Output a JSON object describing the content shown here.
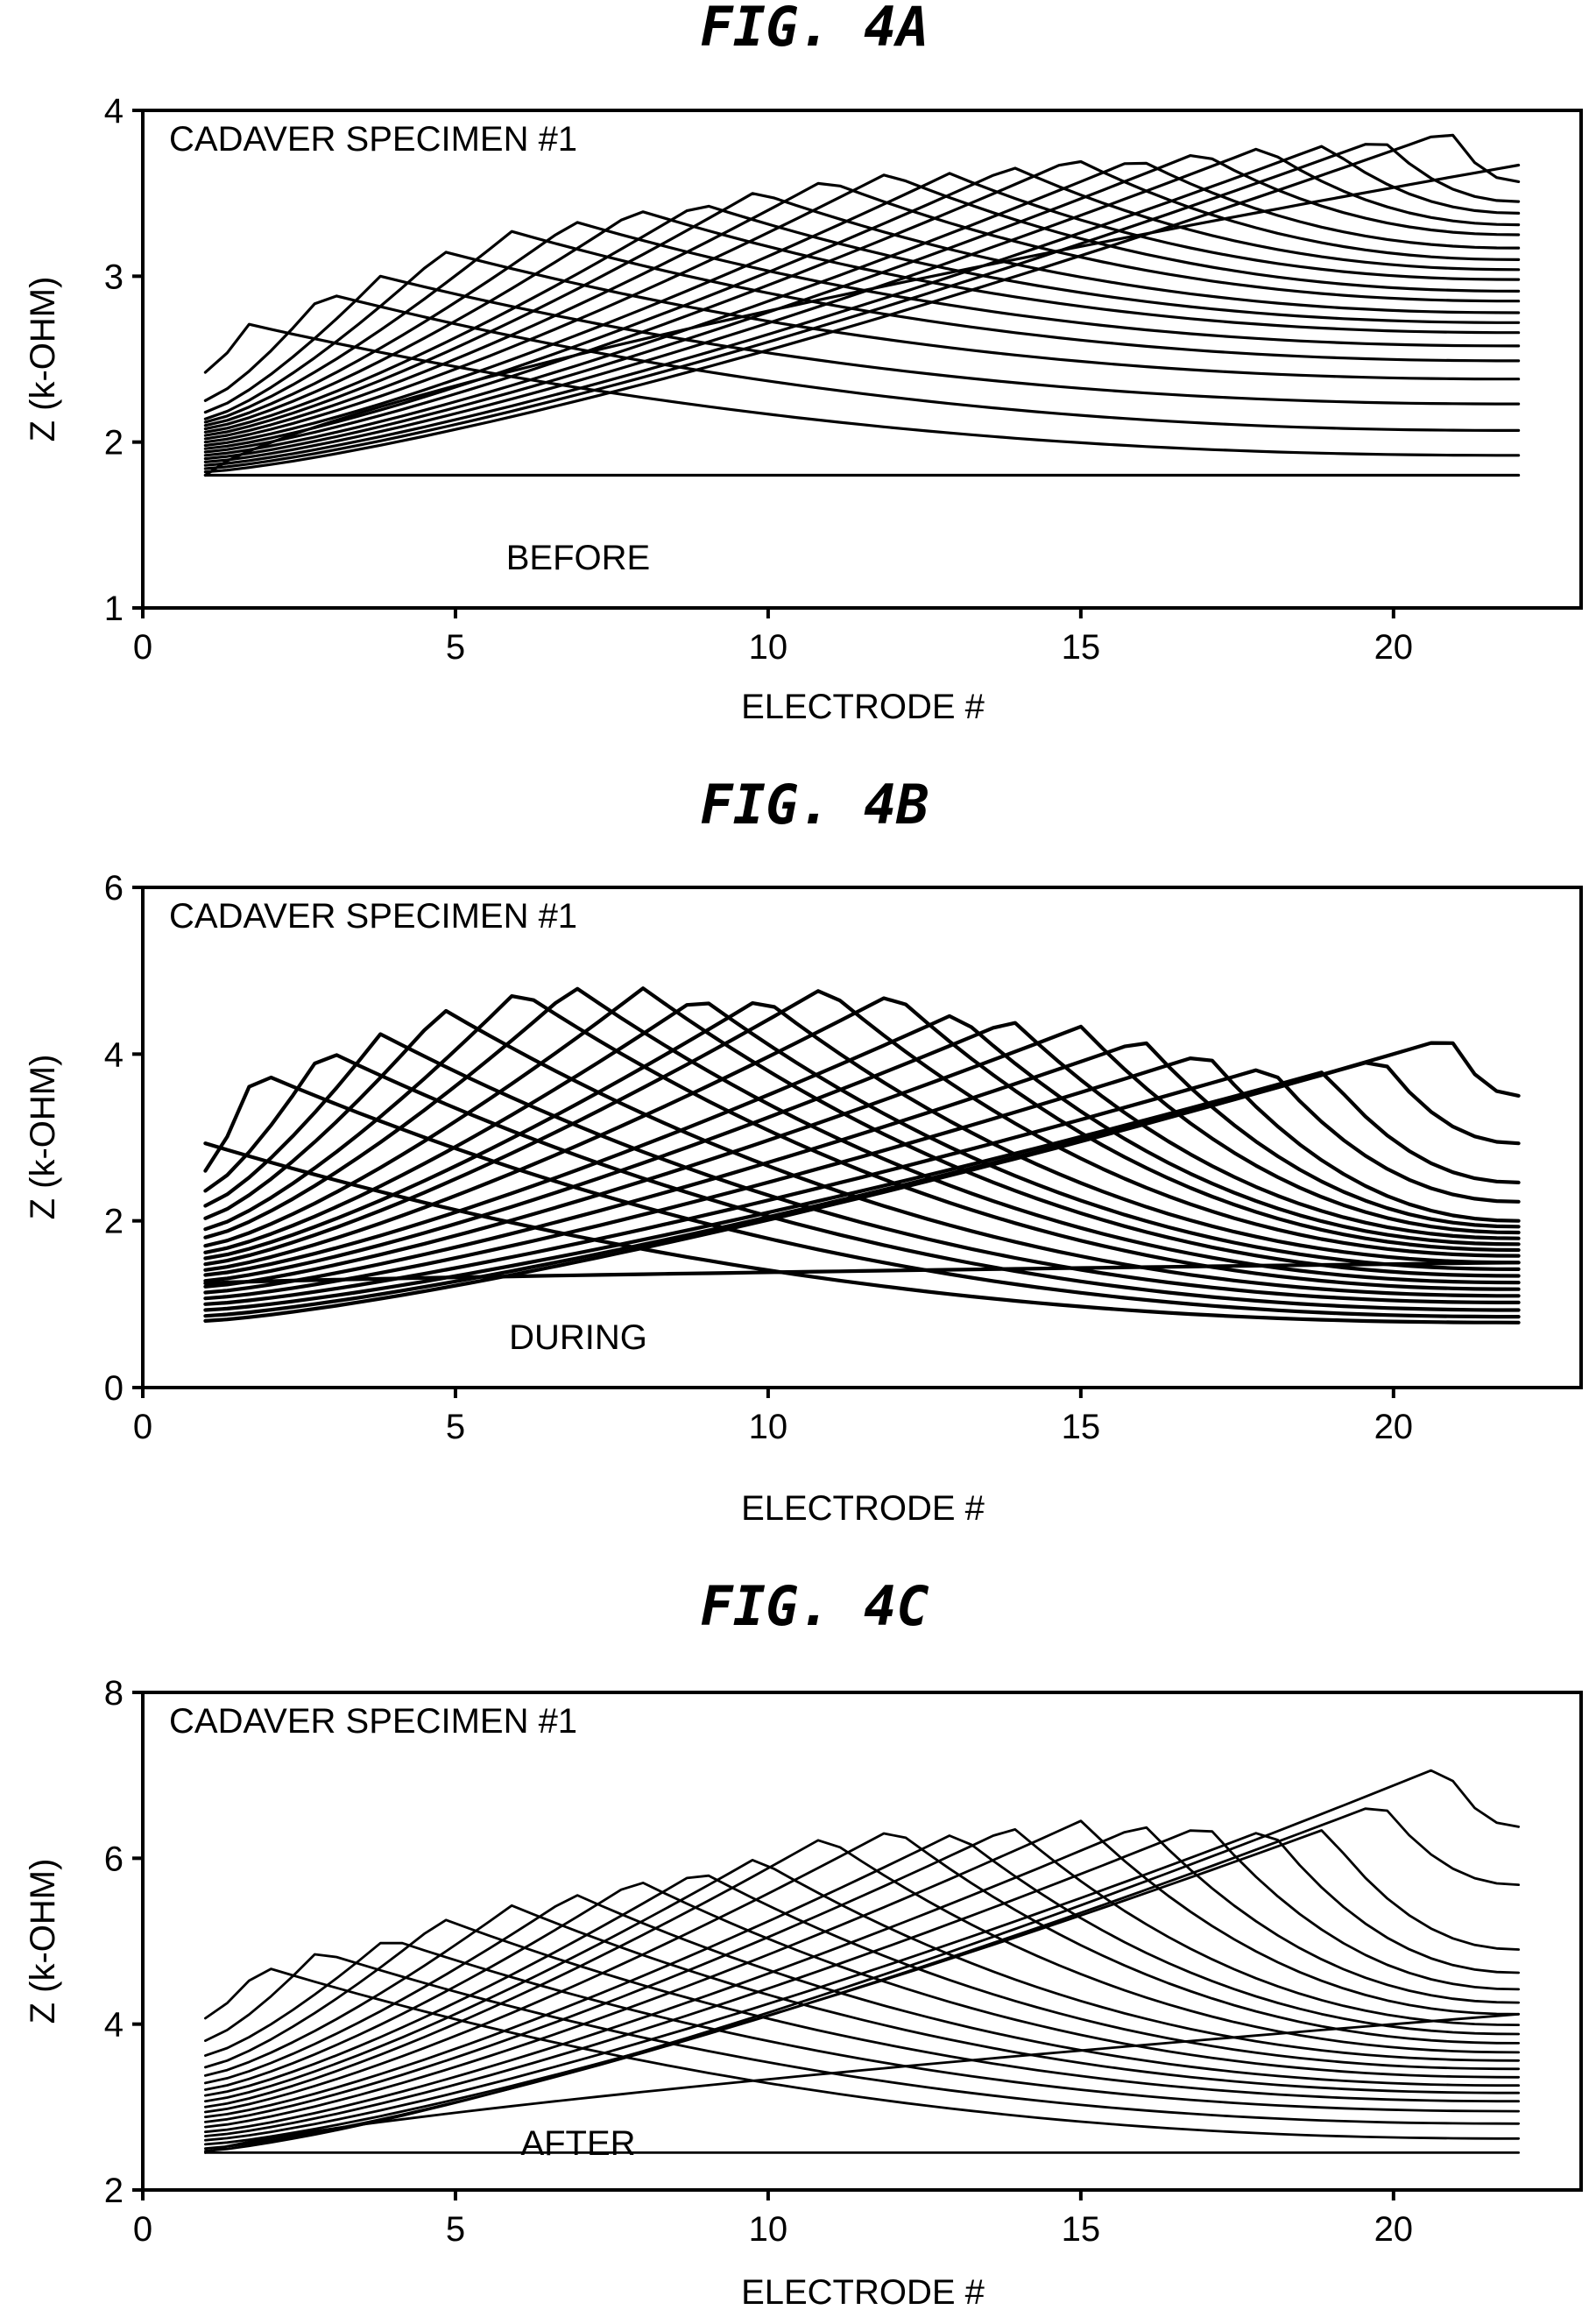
{
  "chart_data": [
    {
      "type": "line",
      "title": "FIG. 4A",
      "annotation": "CADAVER SPECIMEN #1",
      "condition_label": "BEFORE",
      "xlabel": "ELECTRODE #",
      "ylabel": "Z (k-OHM)",
      "xlim": [
        0,
        23
      ],
      "ylim": [
        1,
        4
      ],
      "xticks": [
        0,
        5,
        10,
        15,
        20
      ],
      "yticks": [
        1,
        2,
        3,
        4
      ],
      "grid": false,
      "x": [
        1,
        22
      ],
      "series": [
        {
          "peak_x": 1,
          "start": 1.8,
          "peak": 1.8,
          "end": 1.8,
          "shape": "peak_left"
        },
        {
          "peak_x": 1.7,
          "start": 2.42,
          "peak": 2.71,
          "end": 1.92,
          "shape": "peak_left"
        },
        {
          "peak_x": 2.9,
          "start": 2.25,
          "peak": 2.9,
          "end": 2.07,
          "shape": "peak_left"
        },
        {
          "peak_x": 3.8,
          "start": 2.18,
          "peak": 3.0,
          "end": 2.23,
          "shape": "peak_left"
        },
        {
          "peak_x": 4.8,
          "start": 2.14,
          "peak": 3.15,
          "end": 2.38,
          "shape": "peak_left"
        },
        {
          "peak_x": 5.9,
          "start": 2.12,
          "peak": 3.27,
          "end": 2.49,
          "shape": "peak_left"
        },
        {
          "peak_x": 6.9,
          "start": 2.1,
          "peak": 3.33,
          "end": 2.58,
          "shape": "peak_left"
        },
        {
          "peak_x": 7.9,
          "start": 2.08,
          "peak": 3.4,
          "end": 2.66,
          "shape": "peak_left"
        },
        {
          "peak_x": 8.9,
          "start": 2.06,
          "peak": 3.44,
          "end": 2.72,
          "shape": "peak_left"
        },
        {
          "peak_x": 9.8,
          "start": 2.04,
          "peak": 3.51,
          "end": 2.78,
          "shape": "peak_left"
        },
        {
          "peak_x": 10.9,
          "start": 2.02,
          "peak": 3.58,
          "end": 2.85,
          "shape": "peak_left"
        },
        {
          "peak_x": 11.9,
          "start": 2.0,
          "peak": 3.62,
          "end": 2.91,
          "shape": "peak_left"
        },
        {
          "peak_x": 12.9,
          "start": 1.98,
          "peak": 3.62,
          "end": 2.98,
          "shape": "peak_left"
        },
        {
          "peak_x": 13.9,
          "start": 1.96,
          "peak": 3.66,
          "end": 3.04,
          "shape": "peak_left"
        },
        {
          "peak_x": 14.9,
          "start": 1.94,
          "peak": 3.71,
          "end": 3.1,
          "shape": "peak_left"
        },
        {
          "peak_x": 15.9,
          "start": 1.92,
          "peak": 3.71,
          "end": 3.17,
          "shape": "peak_left"
        },
        {
          "peak_x": 16.9,
          "start": 1.9,
          "peak": 3.75,
          "end": 3.25,
          "shape": "peak_left"
        },
        {
          "peak_x": 17.9,
          "start": 1.88,
          "peak": 3.78,
          "end": 3.31,
          "shape": "peak_left"
        },
        {
          "peak_x": 18.9,
          "start": 1.86,
          "peak": 3.79,
          "end": 3.38,
          "shape": "peak_left"
        },
        {
          "peak_x": 19.8,
          "start": 1.84,
          "peak": 3.83,
          "end": 3.45,
          "shape": "peak_left"
        },
        {
          "peak_x": 20.9,
          "start": 1.82,
          "peak": 3.88,
          "end": 3.57,
          "shape": "peak_left"
        },
        {
          "peak_x": 22,
          "start": 1.8,
          "peak": 3.67,
          "end": 3.67,
          "shape": "rise_right"
        }
      ]
    },
    {
      "type": "line",
      "title": "FIG. 4B",
      "annotation": "CADAVER SPECIMEN #1",
      "condition_label": "DURING",
      "xlabel": "ELECTRODE #",
      "ylabel": "Z (k-OHM)",
      "xlim": [
        0,
        23
      ],
      "ylim": [
        0,
        6
      ],
      "xticks": [
        0,
        5,
        10,
        15,
        20
      ],
      "yticks": [
        0,
        2,
        4,
        6
      ],
      "grid": false,
      "x": [
        1,
        22
      ],
      "series": [
        {
          "peak_x": 1,
          "start": 2.93,
          "peak": 2.93,
          "end": 0.78,
          "shape": "peak_left"
        },
        {
          "peak_x": 1.8,
          "start": 2.6,
          "peak": 3.8,
          "end": 0.85,
          "shape": "peak_left"
        },
        {
          "peak_x": 2.9,
          "start": 2.36,
          "peak": 4.06,
          "end": 0.93,
          "shape": "peak_left"
        },
        {
          "peak_x": 3.8,
          "start": 2.18,
          "peak": 4.24,
          "end": 1.02,
          "shape": "peak_left"
        },
        {
          "peak_x": 4.8,
          "start": 2.03,
          "peak": 4.54,
          "end": 1.1,
          "shape": "peak_left"
        },
        {
          "peak_x": 6.0,
          "start": 1.9,
          "peak": 4.77,
          "end": 1.18,
          "shape": "peak_left"
        },
        {
          "peak_x": 6.9,
          "start": 1.8,
          "peak": 4.81,
          "end": 1.26,
          "shape": "peak_left"
        },
        {
          "peak_x": 8.0,
          "start": 1.7,
          "peak": 4.79,
          "end": 1.34,
          "shape": "peak_left"
        },
        {
          "peak_x": 8.9,
          "start": 1.62,
          "peak": 4.69,
          "end": 1.42,
          "shape": "peak_left"
        },
        {
          "peak_x": 9.9,
          "start": 1.55,
          "peak": 4.68,
          "end": 1.5,
          "shape": "peak_left"
        },
        {
          "peak_x": 10.9,
          "start": 1.48,
          "peak": 4.8,
          "end": 1.58,
          "shape": "peak_left"
        },
        {
          "peak_x": 12.0,
          "start": 1.41,
          "peak": 4.73,
          "end": 1.65,
          "shape": "peak_left"
        },
        {
          "peak_x": 13.0,
          "start": 1.35,
          "peak": 4.49,
          "end": 1.72,
          "shape": "peak_left"
        },
        {
          "peak_x": 13.9,
          "start": 1.28,
          "peak": 4.41,
          "end": 1.79,
          "shape": "peak_left"
        },
        {
          "peak_x": 15.0,
          "start": 1.21,
          "peak": 4.33,
          "end": 1.86,
          "shape": "peak_left"
        },
        {
          "peak_x": 16.0,
          "start": 1.14,
          "peak": 4.17,
          "end": 1.93,
          "shape": "peak_left"
        },
        {
          "peak_x": 17.0,
          "start": 1.07,
          "peak": 4.01,
          "end": 2.0,
          "shape": "peak_left"
        },
        {
          "peak_x": 18.0,
          "start": 1.0,
          "peak": 3.85,
          "end": 2.23,
          "shape": "peak_left"
        },
        {
          "peak_x": 18.9,
          "start": 0.93,
          "peak": 3.79,
          "end": 2.46,
          "shape": "peak_left"
        },
        {
          "peak_x": 19.8,
          "start": 0.86,
          "peak": 3.95,
          "end": 2.93,
          "shape": "peak_left"
        },
        {
          "peak_x": 20.9,
          "start": 0.8,
          "peak": 4.2,
          "end": 3.5,
          "shape": "peak_left"
        },
        {
          "peak_x": 22,
          "start": 1.25,
          "peak": 1.5,
          "end": 1.5,
          "shape": "rise_right"
        }
      ]
    },
    {
      "type": "line",
      "title": "FIG. 4C",
      "annotation": "CADAVER SPECIMEN #1",
      "condition_label": "AFTER",
      "xlabel": "ELECTRODE #",
      "ylabel": "Z (k-OHM)",
      "xlim": [
        0,
        23
      ],
      "ylim": [
        2,
        8
      ],
      "xticks": [
        0,
        5,
        10,
        15,
        20
      ],
      "yticks": [
        2,
        4,
        6,
        8
      ],
      "grid": false,
      "x": [
        1,
        22
      ],
      "series": [
        {
          "peak_x": 1,
          "start": 2.45,
          "peak": 2.45,
          "end": 2.45,
          "shape": "peak_left"
        },
        {
          "peak_x": 1.9,
          "start": 4.07,
          "peak": 4.7,
          "end": 2.62,
          "shape": "peak_left"
        },
        {
          "peak_x": 2.8,
          "start": 3.8,
          "peak": 4.88,
          "end": 2.8,
          "shape": "peak_left"
        },
        {
          "peak_x": 3.9,
          "start": 3.62,
          "peak": 5.04,
          "end": 2.95,
          "shape": "peak_left"
        },
        {
          "peak_x": 4.8,
          "start": 3.48,
          "peak": 5.27,
          "end": 3.07,
          "shape": "peak_left"
        },
        {
          "peak_x": 5.9,
          "start": 3.38,
          "peak": 5.43,
          "end": 3.17,
          "shape": "peak_left"
        },
        {
          "peak_x": 6.9,
          "start": 3.29,
          "peak": 5.57,
          "end": 3.26,
          "shape": "peak_left"
        },
        {
          "peak_x": 7.9,
          "start": 3.21,
          "peak": 5.74,
          "end": 3.36,
          "shape": "peak_left"
        },
        {
          "peak_x": 8.9,
          "start": 3.14,
          "peak": 5.85,
          "end": 3.46,
          "shape": "peak_left"
        },
        {
          "peak_x": 9.8,
          "start": 3.07,
          "peak": 6.0,
          "end": 3.56,
          "shape": "peak_left"
        },
        {
          "peak_x": 10.9,
          "start": 3.0,
          "peak": 6.26,
          "end": 3.66,
          "shape": "peak_left"
        },
        {
          "peak_x": 12.0,
          "start": 2.94,
          "peak": 6.36,
          "end": 3.77,
          "shape": "peak_left"
        },
        {
          "peak_x": 13.0,
          "start": 2.88,
          "peak": 6.31,
          "end": 3.88,
          "shape": "peak_left"
        },
        {
          "peak_x": 13.9,
          "start": 2.82,
          "peak": 6.38,
          "end": 3.99,
          "shape": "peak_left"
        },
        {
          "peak_x": 15.0,
          "start": 2.76,
          "peak": 6.45,
          "end": 4.12,
          "shape": "peak_left"
        },
        {
          "peak_x": 16.0,
          "start": 2.7,
          "peak": 6.41,
          "end": 4.26,
          "shape": "peak_left"
        },
        {
          "peak_x": 17.0,
          "start": 2.65,
          "peak": 6.41,
          "end": 4.42,
          "shape": "peak_left"
        },
        {
          "peak_x": 18.0,
          "start": 2.6,
          "peak": 6.36,
          "end": 4.62,
          "shape": "peak_left"
        },
        {
          "peak_x": 18.9,
          "start": 2.55,
          "peak": 6.35,
          "end": 4.9,
          "shape": "peak_left"
        },
        {
          "peak_x": 19.8,
          "start": 2.5,
          "peak": 6.67,
          "end": 5.68,
          "shape": "peak_left"
        },
        {
          "peak_x": 20.8,
          "start": 2.47,
          "peak": 7.12,
          "end": 6.38,
          "shape": "peak_left"
        },
        {
          "peak_x": 22,
          "start": 2.45,
          "peak": 4.12,
          "end": 4.12,
          "shape": "rise_right"
        }
      ]
    }
  ]
}
